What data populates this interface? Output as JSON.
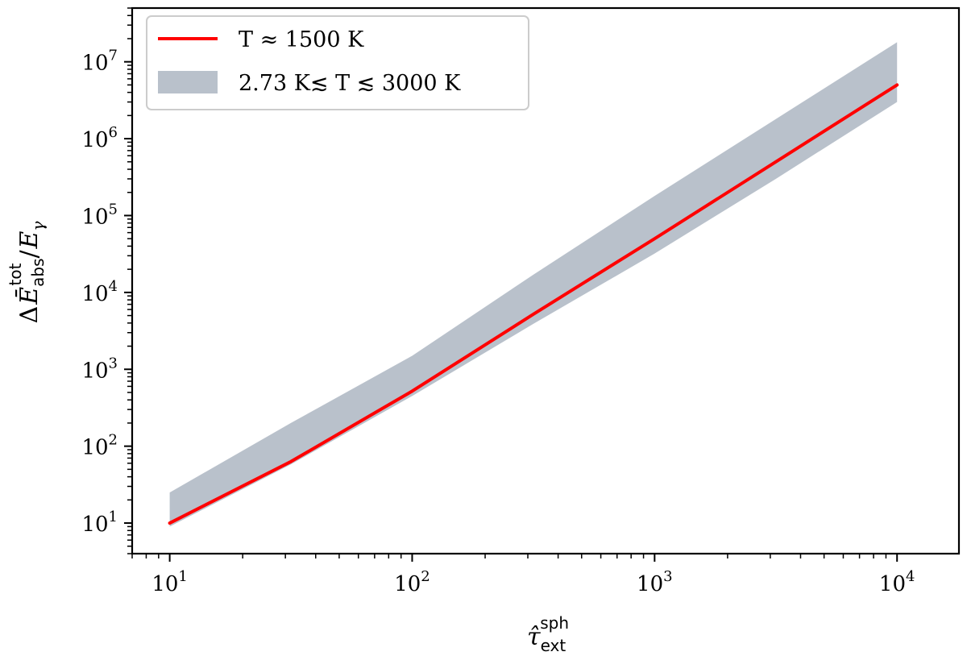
{
  "chart_data": {
    "type": "line",
    "xscale": "log",
    "yscale": "log",
    "xlim": [
      7,
      18000
    ],
    "ylim": [
      4,
      50000000
    ],
    "xticks": [
      {
        "value": 10,
        "base": "10",
        "exp": "1"
      },
      {
        "value": 100,
        "base": "10",
        "exp": "2"
      },
      {
        "value": 1000,
        "base": "10",
        "exp": "3"
      },
      {
        "value": 10000,
        "base": "10",
        "exp": "4"
      }
    ],
    "yticks": [
      {
        "value": 10,
        "base": "10",
        "exp": "1"
      },
      {
        "value": 100,
        "base": "10",
        "exp": "2"
      },
      {
        "value": 1000,
        "base": "10",
        "exp": "3"
      },
      {
        "value": 10000,
        "base": "10",
        "exp": "4"
      },
      {
        "value": 100000,
        "base": "10",
        "exp": "5"
      },
      {
        "value": 1000000,
        "base": "10",
        "exp": "6"
      },
      {
        "value": 10000000,
        "base": "10",
        "exp": "7"
      }
    ],
    "xlabel": {
      "main": "τ̂",
      "sup": "sph",
      "sub": "ext"
    },
    "ylabel": {
      "delta": "Δ",
      "main": "Ē",
      "sup": "tot",
      "sub": "abs",
      "slash": "/",
      "den": "E",
      "den_sub": "γ"
    },
    "legend_position": "top-left",
    "series": [
      {
        "name": "T ≈ 1500 K",
        "kind": "line",
        "color": "#ff0000",
        "x": [
          10,
          31.6,
          100,
          316,
          1000,
          3162,
          10000
        ],
        "y": [
          10,
          63,
          520,
          5200,
          50000,
          500000,
          5000000
        ]
      },
      {
        "name": "2.73 K≲ T ≲ 3000 K",
        "kind": "band",
        "color": "#b9c1cb",
        "x": [
          10,
          31.6,
          100,
          316,
          1000,
          3162,
          10000
        ],
        "y_low": [
          9,
          58,
          450,
          3900,
          32000,
          300000,
          3000000
        ],
        "y_high": [
          25,
          200,
          1500,
          17000,
          180000,
          1800000,
          18000000
        ]
      }
    ]
  }
}
